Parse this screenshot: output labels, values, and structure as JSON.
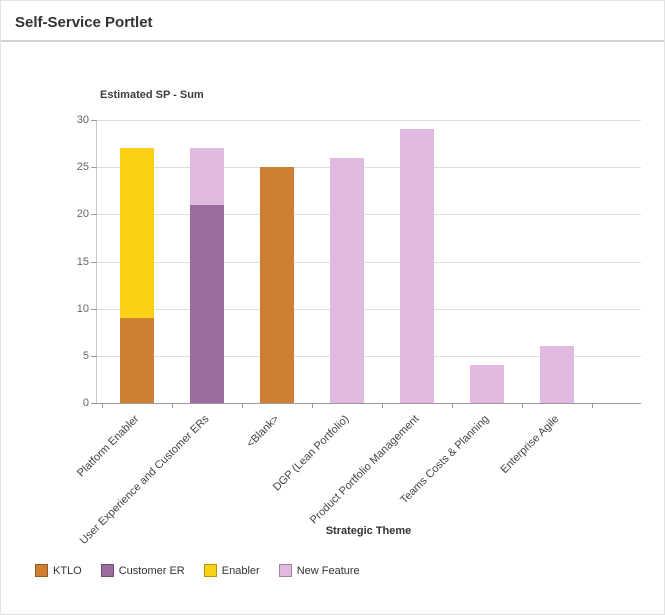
{
  "header": {
    "title": "Self-Service Portlet"
  },
  "chart_data": {
    "type": "bar",
    "stacked": true,
    "title": "Estimated SP - Sum",
    "xlabel": "Strategic Theme",
    "ylabel": "",
    "ylim": [
      0,
      30
    ],
    "yticks": [
      0,
      5,
      10,
      15,
      20,
      25,
      30
    ],
    "grid": true,
    "legend_position": "bottom-left",
    "categories": [
      "Platform Enabler",
      "User Experience and Customer ERs",
      "<Blank>",
      "DGP (Lean Portfolio)",
      "Product Portfolio Management",
      "Teams Costs & Planning",
      "Enterprise Agile"
    ],
    "series": [
      {
        "name": "KTLO",
        "color": "#CE7F33",
        "values": [
          9,
          0,
          25,
          0,
          0,
          0,
          0
        ]
      },
      {
        "name": "Customer ER",
        "color": "#9B6B9D",
        "values": [
          0,
          21,
          0,
          0,
          0,
          0,
          0
        ]
      },
      {
        "name": "Enabler",
        "color": "#FBD116",
        "values": [
          18,
          0,
          0,
          0,
          0,
          0,
          0
        ]
      },
      {
        "name": "New Feature",
        "color": "#DFB9E0",
        "values": [
          0,
          6,
          0,
          26,
          29,
          4,
          6
        ]
      }
    ],
    "totals": [
      27,
      27,
      25,
      26,
      29,
      4,
      6
    ]
  }
}
